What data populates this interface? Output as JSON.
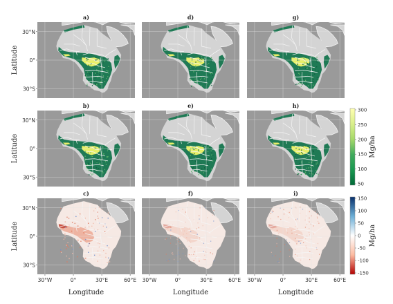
{
  "panel_labels": [
    "a)",
    "b)",
    "c)",
    "d)",
    "e)",
    "f)",
    "g)",
    "h)",
    "i)"
  ],
  "row_labels": [
    "Latitude",
    "Latitude",
    "Latitude"
  ],
  "lat_ticks": [
    "30°N",
    "0°",
    "30°S"
  ],
  "lon_ticks": [
    "30°W",
    "0°",
    "30°E",
    "60°E"
  ],
  "x_title": "Longitude",
  "colorbar_biomass": {
    "unit": "Mg/ha",
    "ticks": [
      "300",
      "250",
      "200",
      "150",
      "100",
      "50"
    ],
    "colors": [
      "#ffffb2",
      "#d9ef8b",
      "#a6d96a",
      "#41ab5d",
      "#1a9850",
      "#006837"
    ]
  },
  "colorbar_diff": {
    "unit": "Mg/ha",
    "ticks": [
      "150",
      "100",
      "50",
      "0",
      "-50",
      "-100",
      "-150"
    ],
    "colors": [
      "#08306b",
      "#6baed6",
      "#ffffff",
      "#fcbba1",
      "#b30000"
    ]
  },
  "colors": {
    "ocean": "#9a9a9a",
    "land": "#d4d4d4",
    "border": "#f5f5f5",
    "forest": "#1f7a55",
    "forest_dark": "#0f5f40",
    "high": "#e8ef6a",
    "diff_land": "#f6e9e4"
  }
}
